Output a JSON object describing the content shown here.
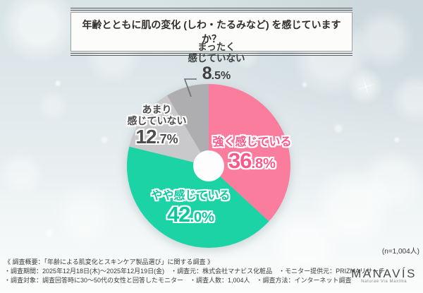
{
  "title": "年齢とともに肌の変化 (しわ・たるみなど) を感じていますか？",
  "sample_note": "(n=1,004人)",
  "chart_data": {
    "type": "pie",
    "title": "年齢とともに肌の変化 (しわ・たるみなど) を感じていますか？",
    "sample_size_note": "(n=1,004人)",
    "start_angle": "12-oclock",
    "direction": "clockwise",
    "donut_hole_ratio": 0.19,
    "legend_position": "labels-on-slices",
    "segments": [
      {
        "label": "強く感じている",
        "value": 36.8,
        "color": "#fa7d9e",
        "label_color": "#f8588c"
      },
      {
        "label": "やや感じている",
        "value": 42.0,
        "color": "#1bd3a5",
        "label_color": "#09c99d"
      },
      {
        "label": "あまり感じていない",
        "value": 12.7,
        "color": "#c9c9cb",
        "label_color": "#4d4d4d",
        "label_lines": [
          "あまり",
          "感じていない"
        ]
      },
      {
        "label": "まったく感じていない",
        "value": 8.5,
        "color": "#aeaeb0",
        "label_color": "#3f3f3f",
        "label_lines": [
          "まったく",
          "感じていない"
        ]
      }
    ]
  },
  "footer": {
    "line1": "《 調査概要：「年齢による肌変化とスキンケア製品選び」に関する調査 》",
    "line2": "・調査期間：2025年12月18日(木)～2025年12月19日(金)　・調査元：株式会社マナビス化粧品　・モニター提供元：PRIZMAリサーチ",
    "line3": "・調査対象：調査回答時に30～50代の女性と回答したモニター　・調査人数：1,004人　・調査方法：インターネット調査"
  },
  "logo": {
    "name": "MANAVÍS",
    "tagline": "Naturae Via Maxima"
  }
}
